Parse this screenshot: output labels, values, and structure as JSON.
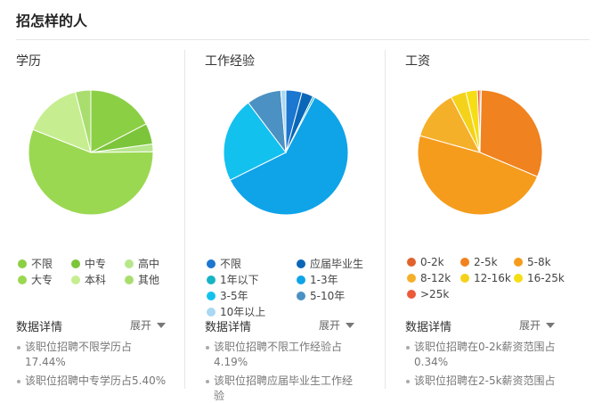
{
  "header": {
    "title": "招怎样的人"
  },
  "chart_data": [
    {
      "type": "pie",
      "title": "学历",
      "categories": [
        "不限",
        "中专",
        "高中",
        "大专",
        "本科",
        "其他"
      ],
      "values": [
        17.44,
        5.4,
        2,
        56.16,
        15,
        4
      ],
      "colors": [
        "#8bcf45",
        "#7cc53a",
        "#b7e68c",
        "#9ad851",
        "#c6ee90",
        "#a9de6f"
      ],
      "legend_columns": 3,
      "detail_title": "数据详情",
      "expand": "展开",
      "details": [
        "该职位招聘不限学历占17.44%",
        "该职位招聘中专学历占5.40%"
      ]
    },
    {
      "type": "pie",
      "title": "工作经验",
      "categories": [
        "不限",
        "应届毕业生",
        "1年以下",
        "1-3年",
        "3-5年",
        "5-10年",
        "10年以上"
      ],
      "values": [
        4.19,
        3,
        0.5,
        60,
        22,
        9,
        1.31
      ],
      "colors": [
        "#1b77cf",
        "#0a67b8",
        "#17b3c6",
        "#0fa3e8",
        "#13c1ef",
        "#4b91c3",
        "#a9d8f2"
      ],
      "legend_columns": 2,
      "detail_title": "数据详情",
      "expand": "展开",
      "details": [
        "该职位招聘不限工作经验占4.19%",
        "该职位招聘应届毕业生工作经验"
      ]
    },
    {
      "type": "pie",
      "title": "工资",
      "categories": [
        "0-2k",
        "2-5k",
        "5-8k",
        "8-12k",
        "12-16k",
        "16-25k",
        ">25k"
      ],
      "values": [
        0.34,
        31,
        48,
        13,
        4,
        3,
        0.66
      ],
      "colors": [
        "#e1622c",
        "#f0821f",
        "#f59c1d",
        "#f5b02a",
        "#f5d21a",
        "#f6de14",
        "#ec5a3a"
      ],
      "legend_columns": 3,
      "detail_title": "数据详情",
      "expand": "展开",
      "details": [
        "该职位招聘在0-2k薪资范围占0.34%",
        "该职位招聘在2-5k薪资范围占"
      ]
    }
  ]
}
